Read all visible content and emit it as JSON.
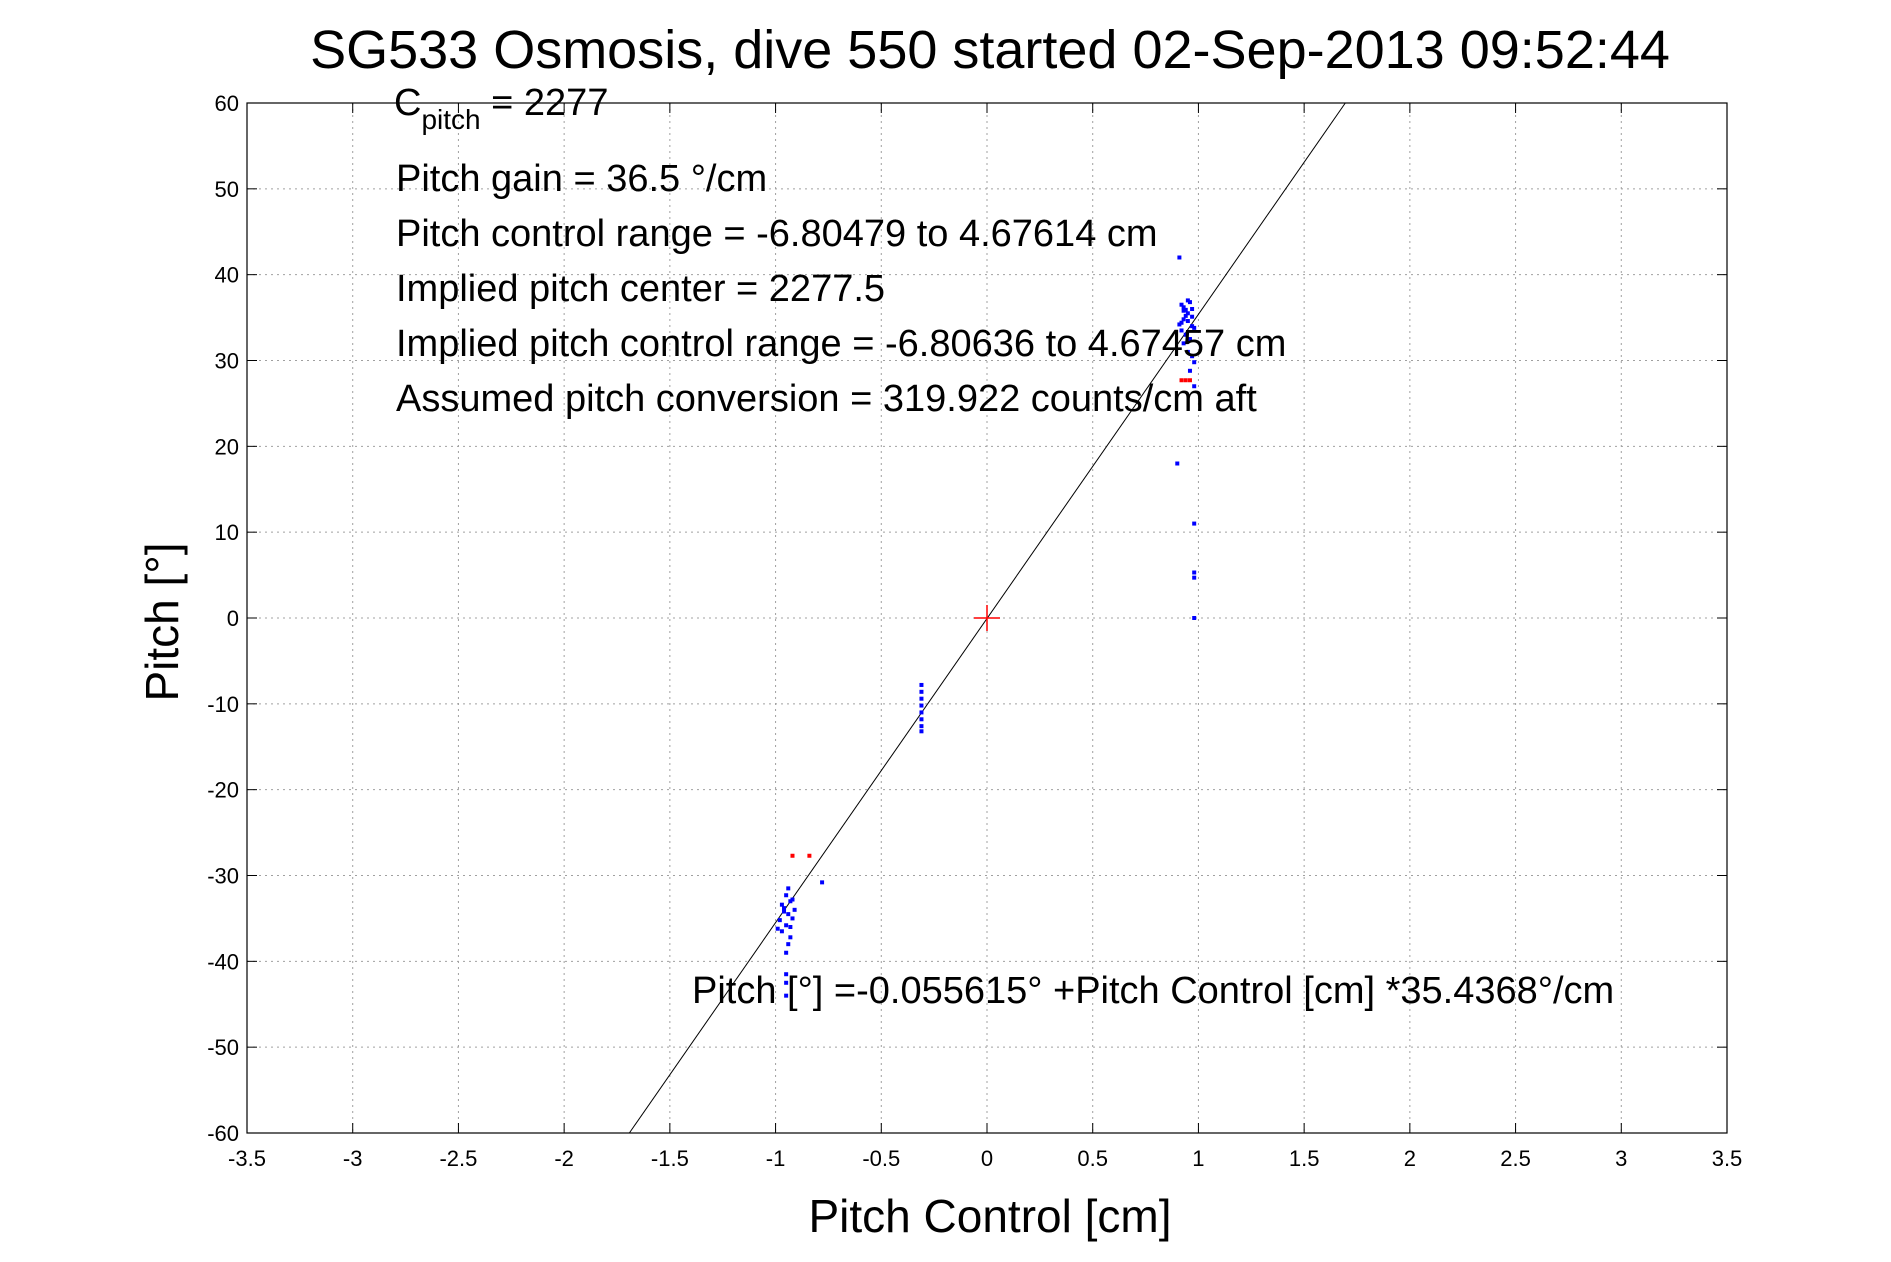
{
  "chart_data": {
    "type": "scatter",
    "title": "SG533 Osmosis, dive 550 started 02-Sep-2013 09:52:44",
    "xlabel": "Pitch Control [cm]",
    "ylabel": "Pitch [°]",
    "xlim": [
      -3.5,
      3.5
    ],
    "ylim": [
      -60,
      60
    ],
    "xticks": [
      -3.5,
      -3,
      -2.5,
      -2,
      -1.5,
      -1,
      -0.5,
      0,
      0.5,
      1,
      1.5,
      2,
      2.5,
      3,
      3.5
    ],
    "xtick_labels": [
      "-3.5",
      "-3",
      "-2.5",
      "-2",
      "-1.5",
      "-1",
      "-0.5",
      "0",
      "0.5",
      "1",
      "1.5",
      "2",
      "2.5",
      "3",
      "3.5"
    ],
    "yticks": [
      -60,
      -50,
      -40,
      -30,
      -20,
      -10,
      0,
      10,
      20,
      30,
      40,
      50,
      60
    ],
    "ytick_labels": [
      "-60",
      "-50",
      "-40",
      "-30",
      "-20",
      "-10",
      "0",
      "10",
      "20",
      "30",
      "40",
      "50",
      "60"
    ],
    "grid": true,
    "annotations": {
      "c_pitch_main": "C",
      "c_pitch_sub": "pitch",
      "c_pitch_value": " = 2277",
      "pitch_gain": "Pitch gain = 36.5 °/cm",
      "control_range": "Pitch control range = -6.80479 to 4.67614 cm",
      "implied_center": "Implied pitch center = 2277.5",
      "implied_range": "Implied pitch control range = -6.80636 to 4.67457 cm",
      "assumed_conversion": "Assumed pitch conversion = 319.922 counts/cm aft",
      "fit_equation": "Pitch [°] =-0.055615° +Pitch Control [cm] *35.4368°/cm"
    },
    "fit_line": {
      "intercept": -0.055615,
      "slope": 35.4368
    },
    "center_marker": {
      "x": 0,
      "y": 0,
      "color": "#ff0000"
    },
    "series": [
      {
        "color": "#0000ff",
        "points": [
          [
            0.91,
            42
          ],
          [
            0.92,
            36.5
          ],
          [
            0.93,
            35.8
          ],
          [
            0.94,
            35.2
          ],
          [
            0.95,
            34.6
          ],
          [
            0.96,
            36.8
          ],
          [
            0.97,
            34.0
          ],
          [
            0.92,
            33.5
          ],
          [
            0.93,
            34.8
          ],
          [
            0.94,
            33.0
          ],
          [
            0.95,
            35.5
          ],
          [
            0.96,
            32.5
          ],
          [
            0.97,
            36.0
          ],
          [
            0.98,
            33.8
          ],
          [
            0.91,
            34.2
          ],
          [
            0.93,
            32.0
          ],
          [
            0.95,
            31.0
          ],
          [
            0.97,
            30.5
          ],
          [
            0.98,
            29.8
          ],
          [
            0.96,
            28.8
          ],
          [
            0.94,
            35.9
          ],
          [
            0.95,
            37.0
          ],
          [
            0.97,
            35.1
          ],
          [
            0.93,
            36.2
          ],
          [
            0.92,
            34.4
          ],
          [
            0.98,
            27.0
          ],
          [
            0.9,
            18.0
          ],
          [
            0.98,
            11.0
          ],
          [
            0.98,
            5.3
          ],
          [
            0.98,
            4.7
          ],
          [
            0.98,
            0.0
          ],
          [
            -0.31,
            -7.8
          ],
          [
            -0.31,
            -8.6
          ],
          [
            -0.31,
            -9.4
          ],
          [
            -0.31,
            -10.2
          ],
          [
            -0.31,
            -11.0
          ],
          [
            -0.31,
            -11.8
          ],
          [
            -0.31,
            -12.6
          ],
          [
            -0.31,
            -13.2
          ],
          [
            -0.94,
            -31.5
          ],
          [
            -0.95,
            -32.3
          ],
          [
            -0.93,
            -33.0
          ],
          [
            -0.96,
            -33.8
          ],
          [
            -0.94,
            -34.5
          ],
          [
            -0.92,
            -35.0
          ],
          [
            -0.95,
            -35.8
          ],
          [
            -0.97,
            -36.5
          ],
          [
            -0.93,
            -37.2
          ],
          [
            -0.94,
            -38.0
          ],
          [
            -0.95,
            -39.0
          ],
          [
            -0.96,
            -34.2
          ],
          [
            -0.92,
            -32.8
          ],
          [
            -0.93,
            -36.0
          ],
          [
            -0.98,
            -35.2
          ],
          [
            -0.99,
            -36.2
          ],
          [
            -0.97,
            -33.4
          ],
          [
            -0.91,
            -34.0
          ],
          [
            -0.95,
            -41.5
          ],
          [
            -0.95,
            -42.5
          ],
          [
            -0.95,
            -44.0
          ],
          [
            -0.78,
            -30.8
          ]
        ]
      },
      {
        "color": "#ff0000",
        "points": [
          [
            0.92,
            27.7
          ],
          [
            0.94,
            27.7
          ],
          [
            0.96,
            27.7
          ],
          [
            -0.92,
            -27.7
          ],
          [
            -0.84,
            -27.7
          ]
        ]
      }
    ]
  }
}
